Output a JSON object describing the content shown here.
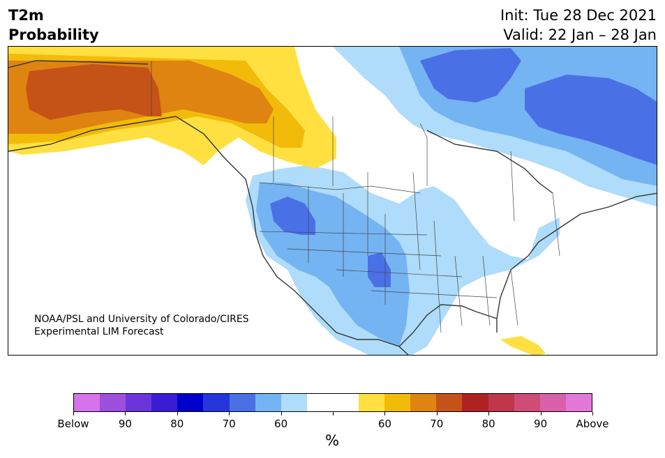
{
  "header": {
    "title_line1": "T2m",
    "title_line2": "Probability",
    "init": "Init: Tue 28 Dec 2021",
    "valid": "Valid: 22 Jan – 28 Jan"
  },
  "map": {
    "credit_line1": "NOAA/PSL and University of Colorado/CIRES",
    "credit_line2": "Experimental LIM Forecast",
    "colors": {
      "ocean": "#ffffff",
      "land_neutral": "#ffffff",
      "below_60": "#aedcfa",
      "below_70": "#75b4f2",
      "below_80": "#4a70e6",
      "above_60": "#ffe040",
      "above_70": "#f2bb0a",
      "above_80": "#df8410",
      "above_90": "#c55318",
      "coast": "#333333"
    }
  },
  "colorbar": {
    "unit": "%",
    "colors": [
      "#d672ea",
      "#9d4fdd",
      "#6c35db",
      "#3a1cd4",
      "#0000cc",
      "#2634dc",
      "#4a70e6",
      "#75b4f2",
      "#aedcfa",
      "#ffffff",
      "#ffffff",
      "#ffe040",
      "#f2bb0a",
      "#df8410",
      "#c55318",
      "#b02222",
      "#c0364a",
      "#d04c78",
      "#da60aa",
      "#e478d8"
    ],
    "ticks": [
      "Below",
      "90",
      "80",
      "70",
      "60",
      "",
      "60",
      "70",
      "80",
      "90",
      "Above"
    ]
  }
}
